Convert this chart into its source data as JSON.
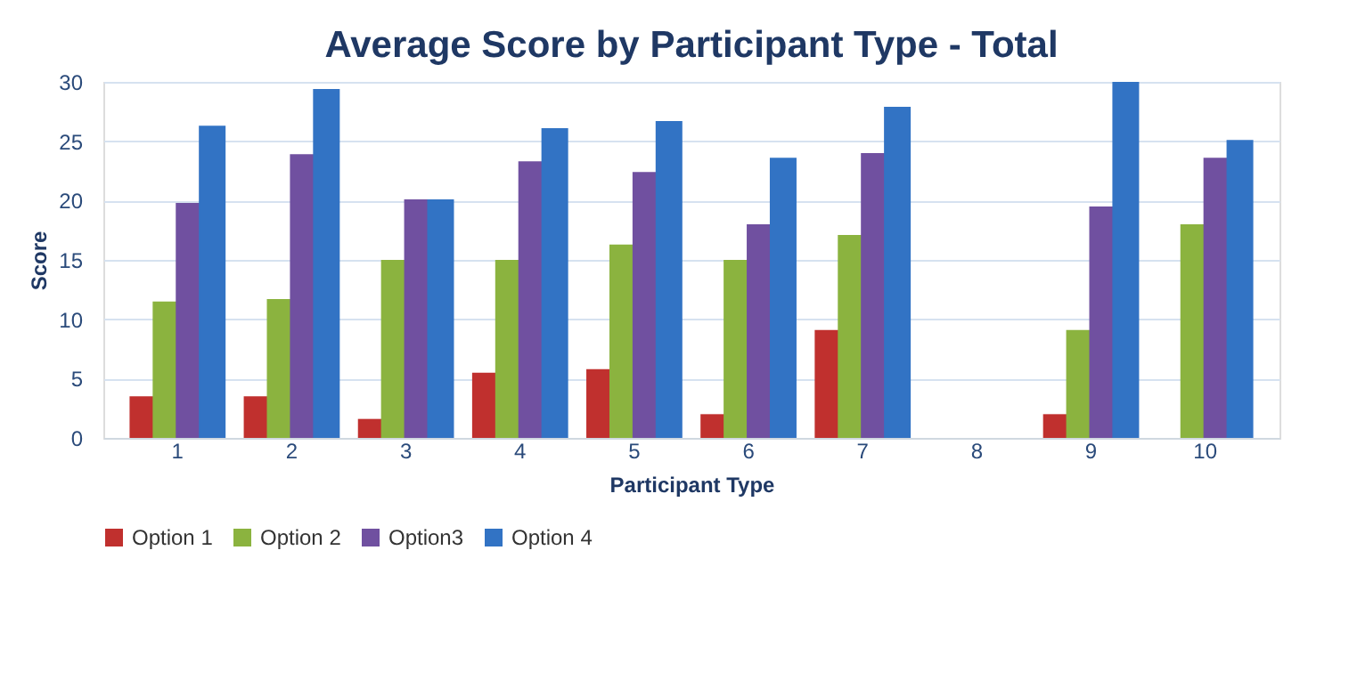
{
  "chart_data": {
    "type": "bar",
    "title": "Average Score by Participant Type - Total",
    "xlabel": "Participant Type",
    "ylabel": "Score",
    "categories": [
      "1",
      "2",
      "3",
      "4",
      "5",
      "6",
      "7",
      "8",
      "9",
      "10"
    ],
    "series": [
      {
        "name": "Option 1",
        "color": "#c0302e",
        "values": [
          3.5,
          3.5,
          1.6,
          5.5,
          5.8,
          2.0,
          9.1,
          null,
          2.0,
          null
        ]
      },
      {
        "name": "Option 2",
        "color": "#8bb33f",
        "values": [
          11.5,
          11.7,
          15.0,
          15.0,
          16.3,
          15.0,
          17.1,
          null,
          9.1,
          18.0
        ]
      },
      {
        "name": "Option3",
        "color": "#7050a0",
        "values": [
          19.8,
          23.9,
          20.1,
          23.3,
          22.4,
          18.0,
          24.0,
          null,
          19.5,
          23.6
        ]
      },
      {
        "name": "Option 4",
        "color": "#3273c4",
        "values": [
          26.3,
          29.4,
          20.1,
          26.1,
          26.7,
          23.6,
          27.9,
          null,
          30.0,
          25.1
        ]
      }
    ],
    "ylim": [
      0,
      30
    ],
    "yticks": [
      0,
      5,
      10,
      15,
      20,
      25,
      30
    ],
    "grid": "y",
    "legend": "bottom"
  }
}
